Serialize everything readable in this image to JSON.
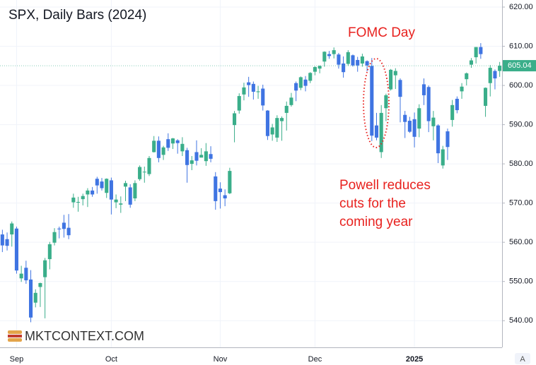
{
  "chart_data": {
    "type": "candlestick",
    "title": "SPX, Daily Bars (2024)",
    "watermark": "MKTCONTEXT.COM",
    "annotations": [
      [
        "FOMC Day"
      ],
      [
        "Powell reduces",
        "cuts for the",
        "coming year"
      ]
    ],
    "up_color": "#3aae8a",
    "down_color": "#3f74e2",
    "annotation_color": "#e8221f",
    "grid": true,
    "ylim": [
      533.2,
      621.8
    ],
    "yticks": [
      {
        "value": 540,
        "label": "540.00"
      },
      {
        "value": 550,
        "label": "550.00"
      },
      {
        "value": 560,
        "label": "560.00"
      },
      {
        "value": 570,
        "label": "570.00"
      },
      {
        "value": 580,
        "label": "580.00"
      },
      {
        "value": 590,
        "label": "590.00"
      },
      {
        "value": 600,
        "label": "600.00"
      },
      {
        "value": 610,
        "label": "610.00"
      },
      {
        "value": 620,
        "label": "620.00"
      }
    ],
    "categories": [
      null,
      null,
      null,
      "Sep",
      null,
      null,
      null,
      null,
      null,
      null,
      null,
      null,
      null,
      null,
      null,
      null,
      null,
      null,
      null,
      null,
      null,
      null,
      null,
      "Oct",
      null,
      null,
      null,
      null,
      null,
      null,
      null,
      null,
      null,
      null,
      null,
      null,
      null,
      null,
      null,
      null,
      null,
      null,
      null,
      null,
      null,
      null,
      "Nov",
      null,
      null,
      null,
      null,
      null,
      null,
      null,
      null,
      null,
      null,
      null,
      null,
      null,
      null,
      null,
      null,
      null,
      null,
      null,
      "Dec",
      null,
      null,
      null,
      null,
      null,
      null,
      null,
      null,
      null,
      null,
      null,
      null,
      null,
      null,
      null,
      null,
      null,
      null,
      null,
      null,
      "2025",
      null,
      null,
      null,
      null,
      null,
      null,
      null,
      null,
      null,
      null,
      null,
      null,
      null,
      null,
      null,
      null,
      null,
      null
    ],
    "open": [
      562.0,
      560.8,
      562.0,
      563.5,
      550.8,
      553.5,
      550.5,
      544.6,
      548.6,
      551.1,
      555.7,
      559.9,
      563.5,
      565.0,
      563.7,
      570.2,
      570.2,
      571.0,
      572.2,
      573.2,
      576.2,
      575.5,
      572.6,
      575.8,
      570.2,
      569.6,
      574.2,
      574.0,
      571.2,
      576.1,
      577.9,
      577.4,
      583.0,
      585.9,
      582.3,
      586.3,
      585.2,
      586.0,
      583.2,
      583.5,
      580.0,
      583.0,
      581.6,
      580.7,
      582.5,
      576.8,
      573.7,
      572.0,
      572.5,
      589.9,
      593.6,
      597.7,
      600.8,
      600.4,
      598.3,
      599.2,
      593.6,
      587.5,
      586.7,
      590.9,
      593.0,
      595.0,
      600.6,
      599.4,
      601.5,
      601.2,
      603.5,
      604.3,
      606.1,
      608.0,
      608.0,
      607.9,
      605.6,
      605.5,
      607.7,
      606.5,
      605.6,
      606.2,
      605.0,
      589.8,
      583.0,
      594.2,
      599.0,
      602.6,
      601.4,
      592.5,
      591.0,
      591.4,
      589.0,
      600.3,
      599.6,
      589.6,
      589.8,
      579.6,
      588.3,
      591.2,
      596.6,
      598.5,
      601.6,
      605.3,
      607.2,
      609.8,
      594.8,
      600.6,
      603.7,
      603.7
    ],
    "high": [
      563.2,
      562.5,
      565.3,
      564.0,
      554.0,
      555.3,
      552.9,
      548.0,
      549.7,
      556.0,
      560.1,
      563.6,
      564.0,
      567.0,
      567.2,
      572.4,
      571.6,
      572.4,
      573.8,
      574.1,
      576.7,
      576.4,
      576.3,
      576.5,
      572.2,
      571.7,
      575.7,
      574.8,
      575.8,
      579.6,
      579.3,
      582.0,
      587.1,
      587.0,
      584.6,
      587.8,
      586.6,
      586.3,
      586.8,
      584.1,
      582.0,
      586.0,
      584.0,
      585.3,
      584.5,
      577.9,
      575.3,
      573.5,
      579.0,
      593.5,
      598.0,
      600.7,
      602.2,
      601.0,
      599.9,
      600.2,
      593.7,
      590.2,
      592.4,
      592.1,
      595.9,
      598.1,
      601.0,
      602.3,
      602.4,
      603.4,
      604.9,
      605.1,
      608.7,
      608.8,
      609.7,
      608.3,
      607.4,
      609.0,
      607.9,
      607.3,
      608.1,
      606.4,
      607.0,
      593.0,
      595.0,
      597.9,
      604.2,
      604.4,
      601.8,
      593.5,
      592.0,
      593.1,
      595.2,
      601.8,
      600.0,
      593.5,
      590.1,
      584.6,
      589.0,
      596.3,
      597.2,
      600.6,
      603.3,
      607.0,
      609.8,
      610.8,
      599.5,
      605.2,
      604.1,
      606.0
    ],
    "low": [
      557.5,
      557.9,
      558.9,
      552.0,
      549.9,
      549.4,
      539.6,
      543.4,
      543.5,
      540.6,
      553.1,
      559.2,
      561.0,
      561.2,
      560.8,
      568.8,
      567.8,
      569.4,
      569.0,
      571.6,
      572.4,
      573.2,
      571.3,
      567.1,
      568.7,
      567.5,
      570.5,
      568.8,
      570.5,
      575.7,
      575.2,
      576.9,
      582.9,
      580.4,
      581.0,
      583.3,
      583.8,
      582.6,
      582.0,
      575.2,
      578.4,
      579.6,
      581.7,
      579.5,
      580.4,
      568.3,
      568.6,
      569.2,
      572.3,
      585.5,
      592.8,
      596.2,
      597.1,
      596.4,
      596.6,
      593.6,
      586.1,
      585.9,
      585.6,
      585.9,
      588.5,
      594.6,
      596.0,
      598.8,
      598.5,
      600.6,
      602.6,
      603.1,
      604.8,
      606.8,
      606.9,
      604.3,
      602.0,
      605.0,
      604.8,
      603.5,
      604.8,
      603.6,
      585.8,
      586.0,
      581.5,
      590.9,
      598.7,
      599.1,
      590.6,
      586.6,
      587.9,
      584.2,
      586.8,
      595.0,
      588.1,
      586.0,
      580.2,
      578.8,
      581.0,
      589.5,
      592.9,
      596.6,
      600.0,
      604.5,
      605.6,
      606.8,
      592.0,
      597.2,
      599.0,
      602.2
    ],
    "close": [
      559.2,
      559.1,
      564.8,
      552.8,
      552.0,
      550.3,
      540.8,
      547.1,
      549.6,
      555.4,
      559.5,
      562.6,
      563.3,
      563.4,
      561.8,
      571.4,
      570.3,
      571.8,
      573.2,
      572.2,
      574.5,
      573.8,
      576.2,
      570.9,
      570.9,
      569.9,
      575.1,
      569.6,
      575.1,
      579.2,
      578.0,
      581.5,
      585.9,
      581.5,
      584.2,
      584.1,
      586.5,
      585.3,
      585.1,
      579.7,
      580.9,
      580.8,
      582.3,
      583.2,
      581.3,
      570.5,
      572.8,
      571.2,
      578.2,
      592.9,
      597.3,
      599.5,
      600.1,
      598.4,
      598.5,
      594.9,
      587.1,
      589.3,
      591.7,
      591.7,
      594.8,
      596.9,
      598.7,
      602.1,
      599.9,
      603.2,
      604.7,
      605.0,
      608.6,
      607.5,
      609.0,
      605.3,
      603.4,
      608.5,
      605.1,
      605.1,
      607.4,
      605.1,
      587.2,
      586.7,
      593.0,
      597.5,
      604.0,
      603.7,
      597.1,
      590.7,
      588.2,
      586.9,
      594.2,
      597.5,
      590.9,
      591.8,
      582.7,
      583.7,
      584.3,
      595.0,
      593.7,
      599.7,
      603.1,
      606.4,
      609.8,
      608.0,
      599.4,
      604.5,
      601.8,
      605.04
    ]
  }
}
